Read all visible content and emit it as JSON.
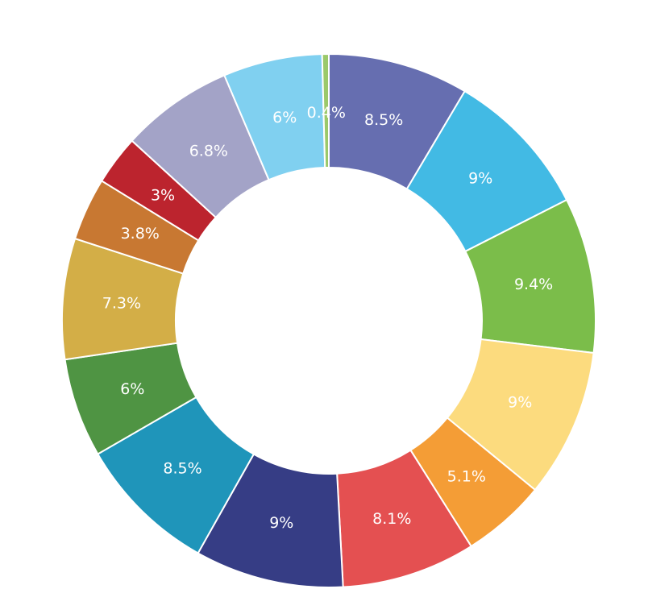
{
  "chart_data": {
    "type": "pie",
    "variant": "donut",
    "title": "",
    "start": "top",
    "direction": "clockwise",
    "slices": [
      {
        "label": "8.5%",
        "value": 8.5,
        "color": "#666eb0"
      },
      {
        "label": "9%",
        "value": 9,
        "color": "#42bae4"
      },
      {
        "label": "9.4%",
        "value": 9.4,
        "color": "#7bbd4a"
      },
      {
        "label": "9%",
        "value": 9,
        "color": "#fcdb7e"
      },
      {
        "label": "5.1%",
        "value": 5.1,
        "color": "#f49d36"
      },
      {
        "label": "8.1%",
        "value": 8.1,
        "color": "#e45051"
      },
      {
        "label": "9%",
        "value": 9,
        "color": "#363d85"
      },
      {
        "label": "8.5%",
        "value": 8.5,
        "color": "#1f95ba"
      },
      {
        "label": "6%",
        "value": 6,
        "color": "#4f9443"
      },
      {
        "label": "7.3%",
        "value": 7.3,
        "color": "#d3ae47"
      },
      {
        "label": "3.8%",
        "value": 3.8,
        "color": "#c87832"
      },
      {
        "label": "3%",
        "value": 3,
        "color": "#bc242e"
      },
      {
        "label": "6.8%",
        "value": 6.8,
        "color": "#a3a3c7"
      },
      {
        "label": "6%",
        "value": 6,
        "color": "#80d0f0"
      },
      {
        "label": "0.4%",
        "value": 0.4,
        "color": "#9bc96a"
      }
    ]
  }
}
